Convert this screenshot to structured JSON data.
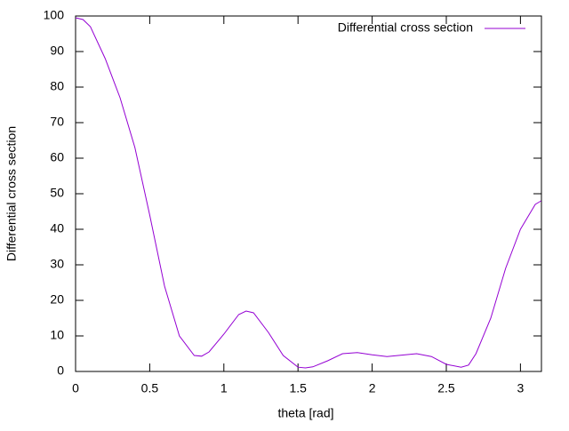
{
  "chart_data": {
    "type": "line",
    "xlabel": "theta [rad]",
    "ylabel": "Differential cross section",
    "x": [
      0,
      0.05,
      0.1,
      0.2,
      0.3,
      0.4,
      0.5,
      0.6,
      0.7,
      0.8,
      0.85,
      0.9,
      1.0,
      1.1,
      1.15,
      1.2,
      1.3,
      1.4,
      1.5,
      1.55,
      1.6,
      1.7,
      1.8,
      1.9,
      2.0,
      2.1,
      2.2,
      2.3,
      2.4,
      2.5,
      2.6,
      2.65,
      2.7,
      2.8,
      2.9,
      3.0,
      3.1,
      3.14
    ],
    "series": [
      {
        "name": "Differential cross section",
        "color": "#9400d3",
        "values": [
          99.5,
          99,
          97,
          88,
          77,
          63,
          44,
          24,
          10,
          4.5,
          4.3,
          5.5,
          10.5,
          16,
          17,
          16.5,
          11,
          4.5,
          1.2,
          1,
          1.3,
          3,
          5,
          5.3,
          4.7,
          4.2,
          4.6,
          5,
          4.2,
          2,
          1.2,
          1.8,
          5,
          15,
          29,
          40,
          47,
          48
        ]
      }
    ],
    "xlim": [
      0,
      3.14159
    ],
    "xticks": [
      0,
      0.5,
      1,
      1.5,
      2,
      2.5,
      3
    ],
    "ylim": [
      0,
      100
    ],
    "yticks": [
      0,
      10,
      20,
      30,
      40,
      50,
      60,
      70,
      80,
      90,
      100
    ],
    "legend": "top-right"
  }
}
